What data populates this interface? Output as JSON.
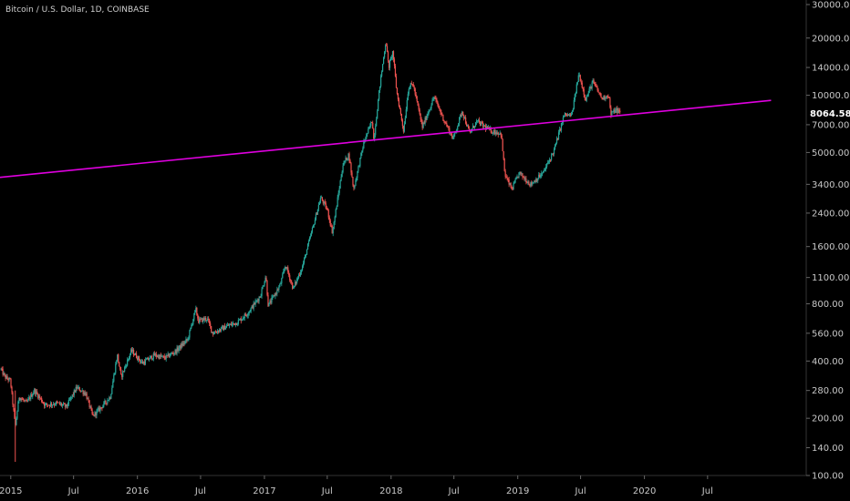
{
  "header": {
    "title": "Bitcoin / U.S. Dollar, 1D, COINBASE"
  },
  "colors": {
    "up": "#26a69a",
    "down": "#ef5350",
    "trend": "#e000e0",
    "background": "#000000"
  },
  "chart_data": {
    "type": "candlestick",
    "y_scale": "log",
    "ylim": [
      100,
      30000
    ],
    "y_ticks": [
      {
        "value": 30000,
        "label": "30000.00"
      },
      {
        "value": 20000,
        "label": "20000.00"
      },
      {
        "value": 14000,
        "label": "14000.00"
      },
      {
        "value": 10000,
        "label": "10000.00"
      },
      {
        "value": 7000,
        "label": "7000.00"
      },
      {
        "value": 5000,
        "label": "5000.00"
      },
      {
        "value": 3400,
        "label": "3400.00"
      },
      {
        "value": 2400,
        "label": "2400.00"
      },
      {
        "value": 1600,
        "label": "1600.00"
      },
      {
        "value": 1100,
        "label": "1100.00"
      },
      {
        "value": 800,
        "label": "800.00"
      },
      {
        "value": 560,
        "label": "560.00"
      },
      {
        "value": 400,
        "label": "400.00"
      },
      {
        "value": 280,
        "label": "280.00"
      },
      {
        "value": 200,
        "label": "200.00"
      },
      {
        "value": 140,
        "label": "140.00"
      },
      {
        "value": 100,
        "label": "100.00"
      }
    ],
    "xlim": [
      "2014-12-01",
      "2020-12-31"
    ],
    "x_ticks": [
      {
        "date": "2015-01-01",
        "label": "2015"
      },
      {
        "date": "2015-07-01",
        "label": "Jul"
      },
      {
        "date": "2016-01-01",
        "label": "2016"
      },
      {
        "date": "2016-07-01",
        "label": "Jul"
      },
      {
        "date": "2017-01-01",
        "label": "2017"
      },
      {
        "date": "2017-07-01",
        "label": "Jul"
      },
      {
        "date": "2018-01-01",
        "label": "2018"
      },
      {
        "date": "2018-07-01",
        "label": "Jul"
      },
      {
        "date": "2019-01-01",
        "label": "2019"
      },
      {
        "date": "2019-07-01",
        "label": "Jul"
      },
      {
        "date": "2020-01-01",
        "label": "2020"
      },
      {
        "date": "2020-07-01",
        "label": "Jul"
      }
    ],
    "last_price": {
      "value": 8064.58,
      "label": "8064.58"
    },
    "trend_line": {
      "start": {
        "date": "2014-12-01",
        "price": 3700
      },
      "end": {
        "date": "2020-12-31",
        "price": 9400
      }
    },
    "price_series": [
      [
        "2014-12-01",
        370
      ],
      [
        "2014-12-15",
        330
      ],
      [
        "2014-12-31",
        315
      ],
      [
        "2015-01-14",
        180
      ],
      [
        "2015-01-25",
        260
      ],
      [
        "2015-02-15",
        240
      ],
      [
        "2015-03-10",
        280
      ],
      [
        "2015-04-10",
        235
      ],
      [
        "2015-05-15",
        240
      ],
      [
        "2015-06-10",
        230
      ],
      [
        "2015-07-10",
        290
      ],
      [
        "2015-08-05",
        270
      ],
      [
        "2015-08-25",
        205
      ],
      [
        "2015-09-20",
        230
      ],
      [
        "2015-10-15",
        260
      ],
      [
        "2015-11-04",
        430
      ],
      [
        "2015-11-15",
        330
      ],
      [
        "2015-12-15",
        455
      ],
      [
        "2016-01-15",
        390
      ],
      [
        "2016-02-20",
        430
      ],
      [
        "2016-03-20",
        415
      ],
      [
        "2016-04-20",
        450
      ],
      [
        "2016-05-25",
        520
      ],
      [
        "2016-06-17",
        750
      ],
      [
        "2016-06-25",
        650
      ],
      [
        "2016-07-20",
        670
      ],
      [
        "2016-08-05",
        560
      ],
      [
        "2016-09-15",
        610
      ],
      [
        "2016-10-15",
        640
      ],
      [
        "2016-11-15",
        720
      ],
      [
        "2016-12-20",
        880
      ],
      [
        "2017-01-05",
        1130
      ],
      [
        "2017-01-12",
        780
      ],
      [
        "2017-02-15",
        1000
      ],
      [
        "2017-03-03",
        1280
      ],
      [
        "2017-03-25",
        960
      ],
      [
        "2017-04-20",
        1250
      ],
      [
        "2017-05-20",
        2000
      ],
      [
        "2017-06-12",
        2900
      ],
      [
        "2017-07-01",
        2500
      ],
      [
        "2017-07-16",
        1900
      ],
      [
        "2017-08-15",
        4300
      ],
      [
        "2017-09-01",
        4900
      ],
      [
        "2017-09-15",
        3200
      ],
      [
        "2017-10-15",
        5700
      ],
      [
        "2017-11-08",
        7400
      ],
      [
        "2017-11-12",
        5800
      ],
      [
        "2017-11-29",
        11000
      ],
      [
        "2017-12-17",
        19500
      ],
      [
        "2017-12-25",
        14000
      ],
      [
        "2018-01-06",
        17000
      ],
      [
        "2018-01-17",
        10500
      ],
      [
        "2018-02-06",
        6500
      ],
      [
        "2018-02-20",
        11000
      ],
      [
        "2018-03-05",
        11500
      ],
      [
        "2018-04-01",
        6800
      ],
      [
        "2018-05-05",
        9800
      ],
      [
        "2018-06-01",
        7500
      ],
      [
        "2018-06-29",
        5900
      ],
      [
        "2018-07-25",
        8300
      ],
      [
        "2018-08-15",
        6300
      ],
      [
        "2018-09-05",
        7300
      ],
      [
        "2018-10-15",
        6500
      ],
      [
        "2018-11-14",
        6300
      ],
      [
        "2018-11-25",
        3800
      ],
      [
        "2018-12-15",
        3200
      ],
      [
        "2019-01-05",
        3900
      ],
      [
        "2019-02-07",
        3400
      ],
      [
        "2019-03-15",
        3900
      ],
      [
        "2019-04-15",
        5100
      ],
      [
        "2019-05-15",
        7900
      ],
      [
        "2019-06-05",
        7800
      ],
      [
        "2019-06-26",
        13000
      ],
      [
        "2019-07-16",
        9500
      ],
      [
        "2019-08-05",
        11800
      ],
      [
        "2019-09-01",
        9600
      ],
      [
        "2019-09-20",
        10100
      ],
      [
        "2019-09-26",
        7900
      ],
      [
        "2019-10-10",
        8400
      ],
      [
        "2019-10-25",
        8065
      ]
    ]
  }
}
